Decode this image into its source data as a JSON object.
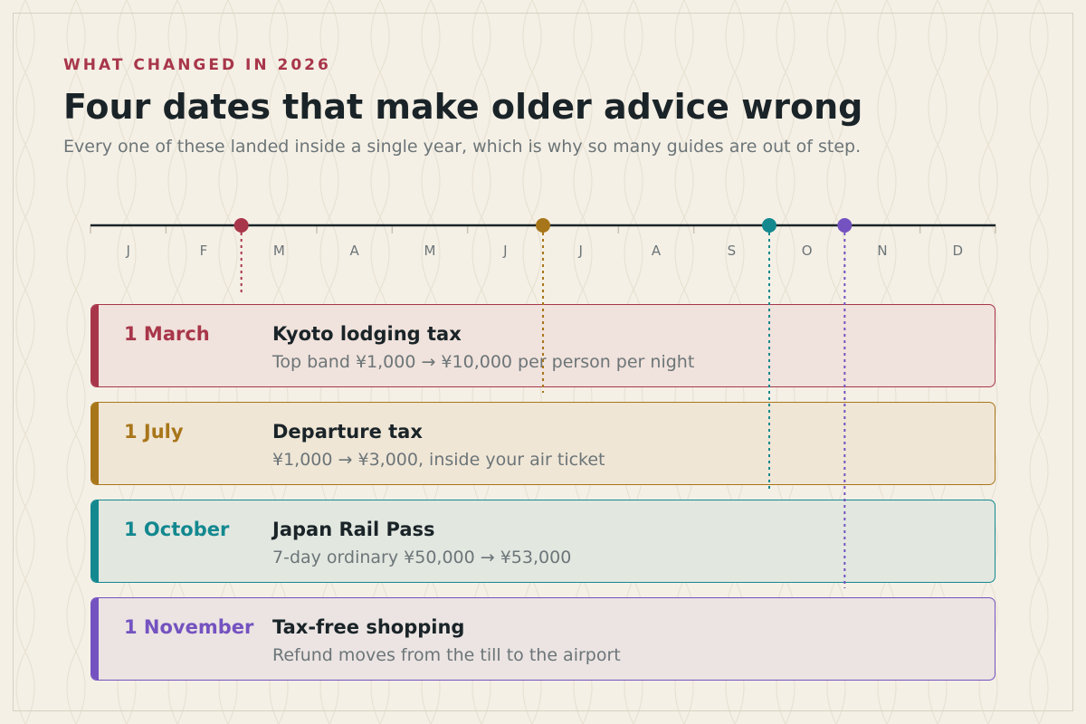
{
  "header": {
    "eyebrow": "WHAT CHANGED IN 2026",
    "title": "Four dates that make older advice wrong",
    "subtitle": "Every one of these landed inside a single year, which is why so many guides are out of step."
  },
  "timeline": {
    "months": [
      "J",
      "F",
      "M",
      "A",
      "M",
      "J",
      "J",
      "A",
      "S",
      "O",
      "N",
      "D"
    ],
    "line_color": "#1a2428",
    "tick_color": "#c9c3b3",
    "label_color": "#6c7578"
  },
  "events": [
    {
      "date": "1 March",
      "month_index": 2,
      "title": "Kyoto lodging tax",
      "detail": "Top band ¥1,000 → ¥10,000 per person per night",
      "color": "#a8364a",
      "bg": "#f0e2dc"
    },
    {
      "date": "1 July",
      "month_index": 6,
      "title": "Departure tax",
      "detail": "¥1,000 → ¥3,000, inside your air ticket",
      "color": "#a8761a",
      "bg": "#f0e6d6"
    },
    {
      "date": "1 October",
      "month_index": 9,
      "title": "Japan Rail Pass",
      "detail": "7-day ordinary ¥50,000 → ¥53,000",
      "color": "#13888f",
      "bg": "#e2e7e0"
    },
    {
      "date": "1 November",
      "month_index": 10,
      "title": "Tax-free shopping",
      "detail": "Refund moves from the till to the airport",
      "color": "#7452c0",
      "bg": "#ebe4e2"
    }
  ],
  "colors": {
    "background": "#f5f0e6",
    "text_dark": "#1a2428",
    "text_muted": "#6c7578",
    "accent": "#a8364a"
  }
}
